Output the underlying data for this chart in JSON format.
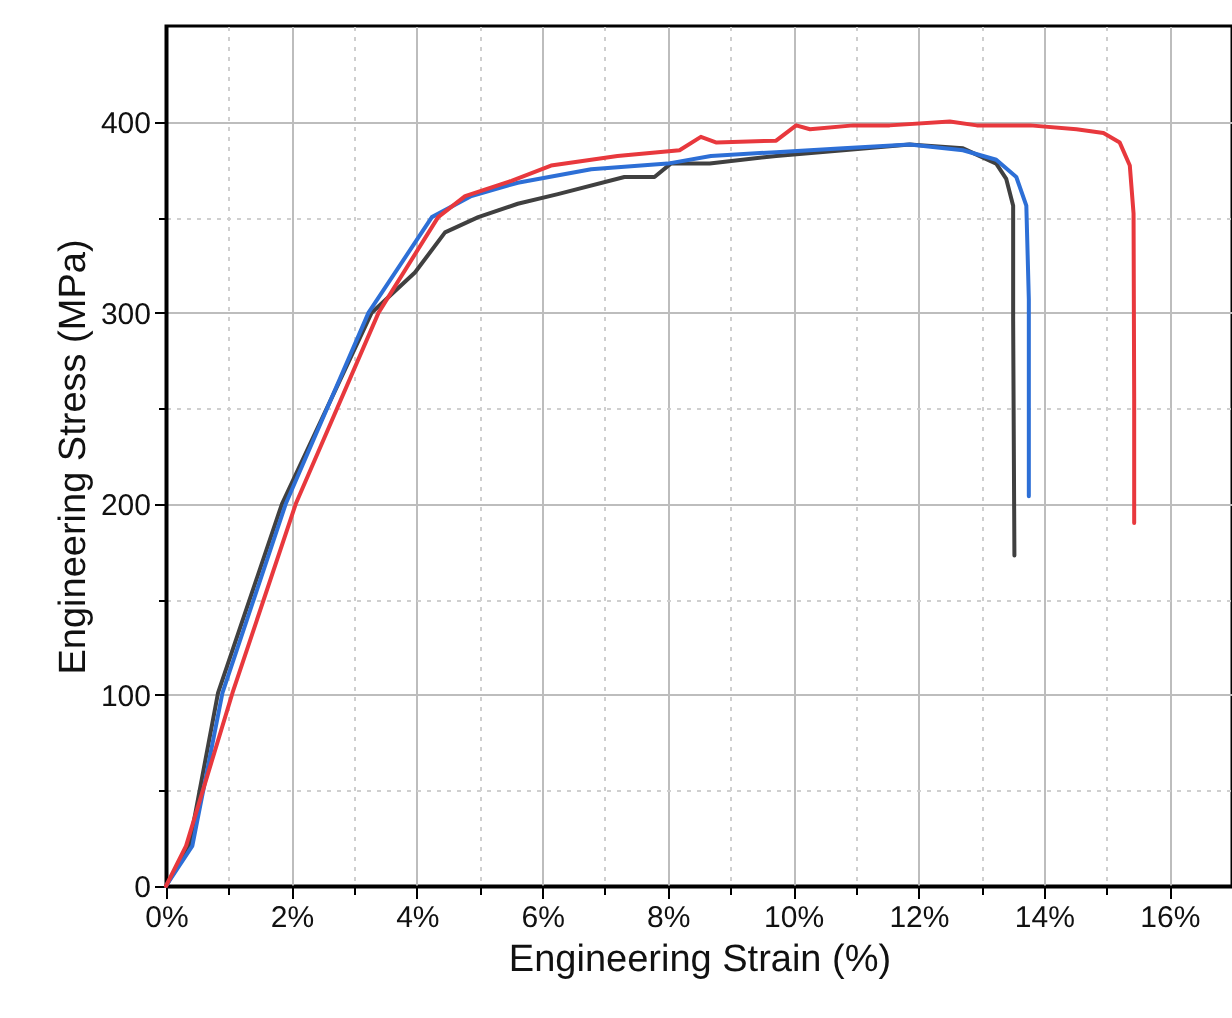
{
  "chart_data": {
    "type": "line",
    "xlabel": "Engineering Strain (%)",
    "ylabel": "Engineering Stress (MPa)",
    "xlim": [
      0,
      17
    ],
    "ylim": [
      0,
      450
    ],
    "xticks": [
      {
        "value": 0,
        "label": "0%"
      },
      {
        "value": 1,
        "label": null
      },
      {
        "value": 2,
        "label": "2%"
      },
      {
        "value": 3,
        "label": null
      },
      {
        "value": 4,
        "label": "4%"
      },
      {
        "value": 5,
        "label": null
      },
      {
        "value": 6,
        "label": "6%"
      },
      {
        "value": 7,
        "label": null
      },
      {
        "value": 8,
        "label": "8%"
      },
      {
        "value": 9,
        "label": null
      },
      {
        "value": 10,
        "label": "10%"
      },
      {
        "value": 11,
        "label": null
      },
      {
        "value": 12,
        "label": "12%"
      },
      {
        "value": 13,
        "label": null
      },
      {
        "value": 14,
        "label": "14%"
      },
      {
        "value": 15,
        "label": null
      },
      {
        "value": 16,
        "label": "16%"
      }
    ],
    "yticks": [
      0,
      {
        "value": 50,
        "label": null
      },
      100,
      {
        "value": 150,
        "label": null
      },
      200,
      {
        "value": 250,
        "label": null
      },
      300,
      {
        "value": 350,
        "label": null
      },
      400
    ],
    "grid": true,
    "marker": "none",
    "line_style": "solid",
    "series": [
      {
        "color": "#404040",
        "x": [
          0,
          0.37,
          0.83,
          1.85,
          3.28,
          3.97,
          4.45,
          4.98,
          5.61,
          6.25,
          7.31,
          7.79,
          8.05,
          8.67,
          9.73,
          10.8,
          11.86,
          12.71,
          13.24,
          13.4,
          13.51,
          13.51,
          13.53
        ],
        "values": [
          0,
          21,
          101,
          200,
          300,
          321,
          342,
          350,
          357,
          362,
          371,
          371,
          378,
          378,
          382,
          385,
          388,
          386,
          378,
          370,
          356,
          296,
          173
        ]
      },
      {
        "color": "#2d6fd6",
        "x": [
          0,
          0.42,
          0.9,
          1.91,
          3.23,
          4.24,
          4.87,
          5.61,
          6.78,
          8.0,
          8.69,
          9.73,
          10.8,
          11.86,
          12.71,
          13.24,
          13.56,
          13.72,
          13.76,
          13.76
        ],
        "values": [
          0,
          21,
          101,
          200,
          300,
          350,
          361,
          368,
          375,
          378,
          382,
          384,
          386,
          388,
          385,
          380,
          371,
          356,
          307,
          204
        ]
      },
      {
        "color": "#e8383d",
        "x": [
          0,
          0.32,
          1.06,
          2.07,
          3.39,
          4.34,
          4.77,
          5.51,
          6.14,
          7.2,
          8.19,
          8.53,
          8.78,
          9.73,
          10.05,
          10.27,
          10.96,
          11.54,
          12.5,
          12.93,
          13.78,
          14.52,
          14.95,
          15.21,
          15.37,
          15.43,
          15.44,
          15.44
        ],
        "values": [
          0,
          21,
          101,
          200,
          300,
          350,
          361,
          369,
          377,
          382,
          385,
          392,
          389,
          390,
          398,
          396,
          398,
          398,
          400,
          398,
          398,
          396,
          394,
          389,
          377,
          352,
          255,
          190
        ]
      }
    ]
  }
}
